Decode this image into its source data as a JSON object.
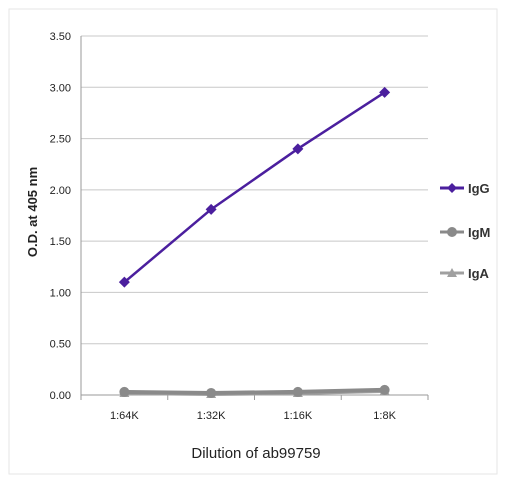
{
  "chart_data": {
    "type": "line",
    "title": "",
    "xlabel": "Dilution of ab99759",
    "ylabel": "O.D. at 405 nm",
    "categories": [
      "1:64K",
      "1:32K",
      "1:16K",
      "1:8K"
    ],
    "ylim": [
      0,
      3.5
    ],
    "yticks": [
      "0.00",
      "0.50",
      "1.00",
      "1.50",
      "2.00",
      "2.50",
      "3.00",
      "3.50"
    ],
    "grid": true,
    "legend_position": "right",
    "series": [
      {
        "name": "IgG",
        "values": [
          1.1,
          1.81,
          2.4,
          2.95
        ],
        "color": "#4b1f9e",
        "marker": "diamond"
      },
      {
        "name": "IgM",
        "values": [
          0.03,
          0.02,
          0.03,
          0.05
        ],
        "color": "#8a8a8a",
        "marker": "circle"
      },
      {
        "name": "IgA",
        "values": [
          0.02,
          0.01,
          0.02,
          0.04
        ],
        "color": "#a0a0a0",
        "marker": "triangle"
      }
    ]
  }
}
